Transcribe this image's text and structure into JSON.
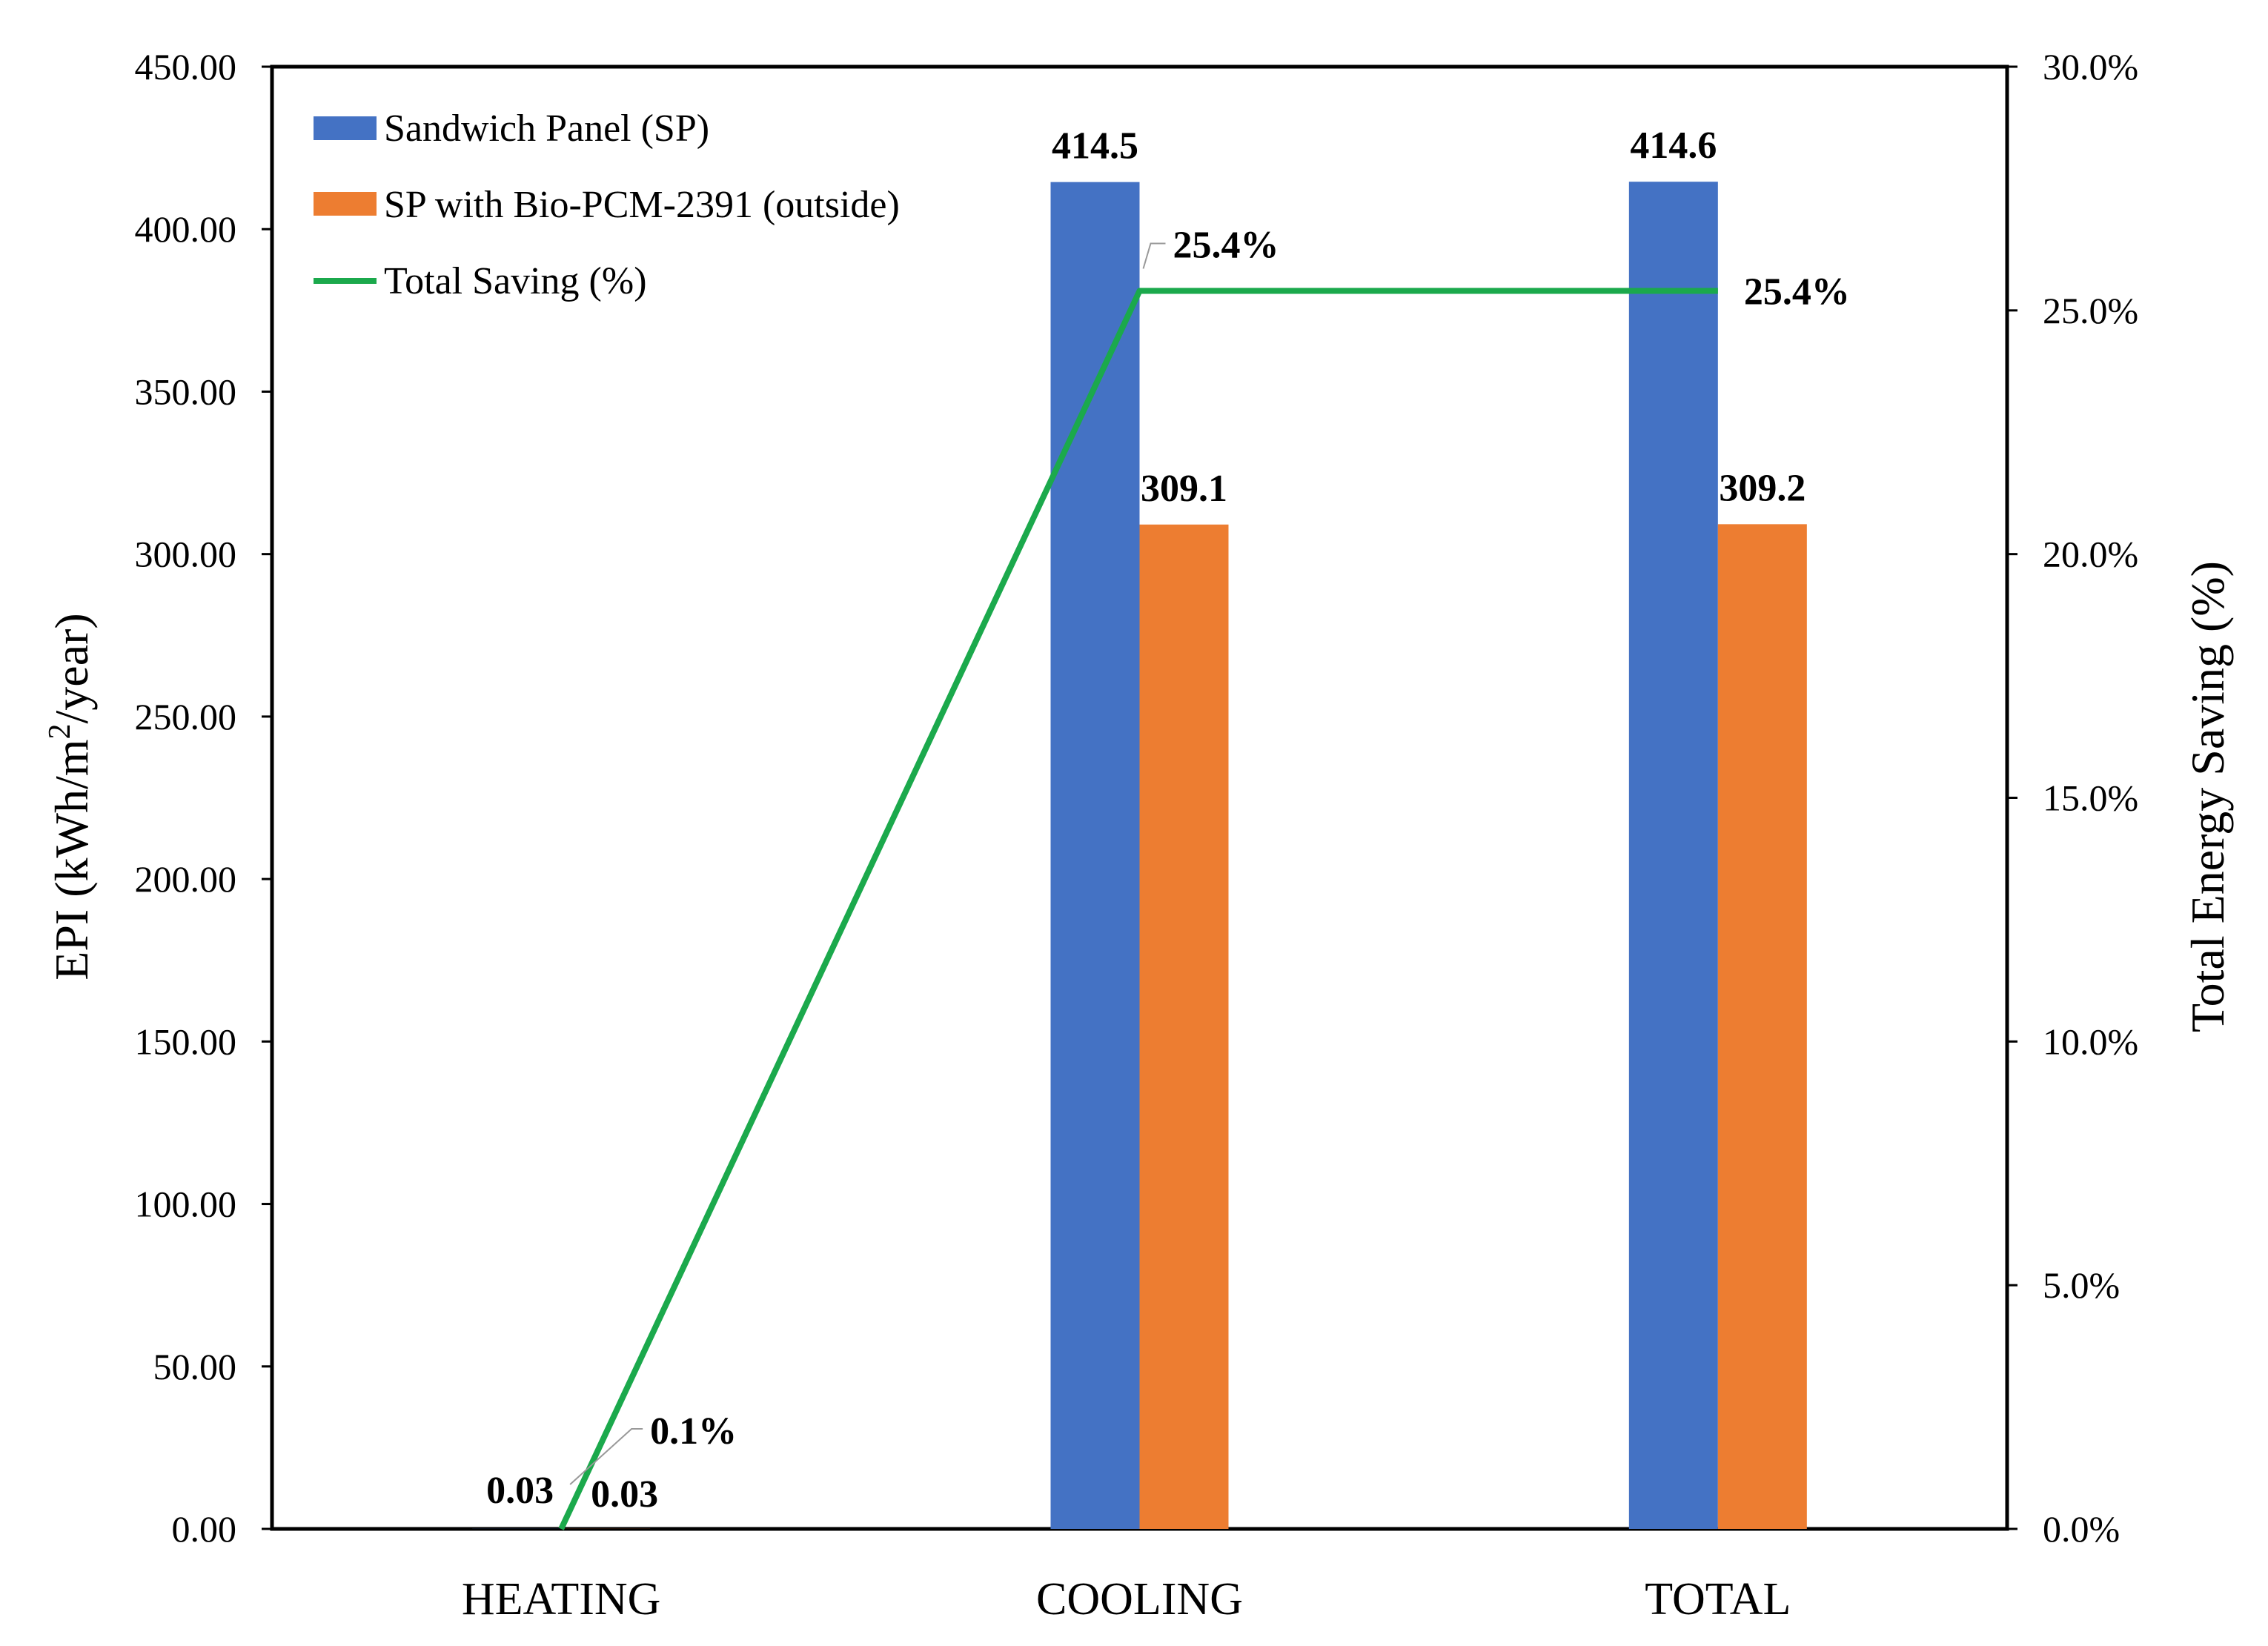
{
  "chart_data": {
    "type": "bar",
    "categories": [
      "HEATING",
      "COOLING",
      "TOTAL"
    ],
    "series": [
      {
        "name": "Sandwich Panel (SP)",
        "values": [
          0.03,
          414.5,
          414.6
        ],
        "labels": [
          "0.03",
          "414.5",
          "414.6"
        ],
        "color": "#4472c4"
      },
      {
        "name": "SP with Bio-PCM-2391 (outside)",
        "values": [
          0.03,
          309.1,
          309.2
        ],
        "labels": [
          "0.03",
          "309.1",
          "309.2"
        ],
        "color": "#ed7d31"
      }
    ],
    "line_series": {
      "name": "Total Saving (%)",
      "values": [
        0.1,
        25.4,
        25.4
      ],
      "labels": [
        "0.1%",
        "25.4%",
        "25.4%"
      ],
      "color": "#1ba94c",
      "axis": "right"
    },
    "ylabel": "EPI (kWh/m²/year)",
    "ylabel_parts": {
      "pre": "EPI (kWh/m",
      "sup": "2",
      "post": "/year)"
    },
    "y2label": "Total Energy Saving (%)",
    "ylim": [
      0,
      450
    ],
    "y2lim": [
      0,
      30
    ],
    "yticks": [
      "0.00",
      "50.00",
      "100.00",
      "150.00",
      "200.00",
      "250.00",
      "300.00",
      "350.00",
      "400.00",
      "450.00"
    ],
    "y2ticks": [
      "0.0%",
      "5.0%",
      "10.0%",
      "15.0%",
      "20.0%",
      "25.0%",
      "30.0%"
    ],
    "legend_position": "top-left",
    "grid": false
  }
}
